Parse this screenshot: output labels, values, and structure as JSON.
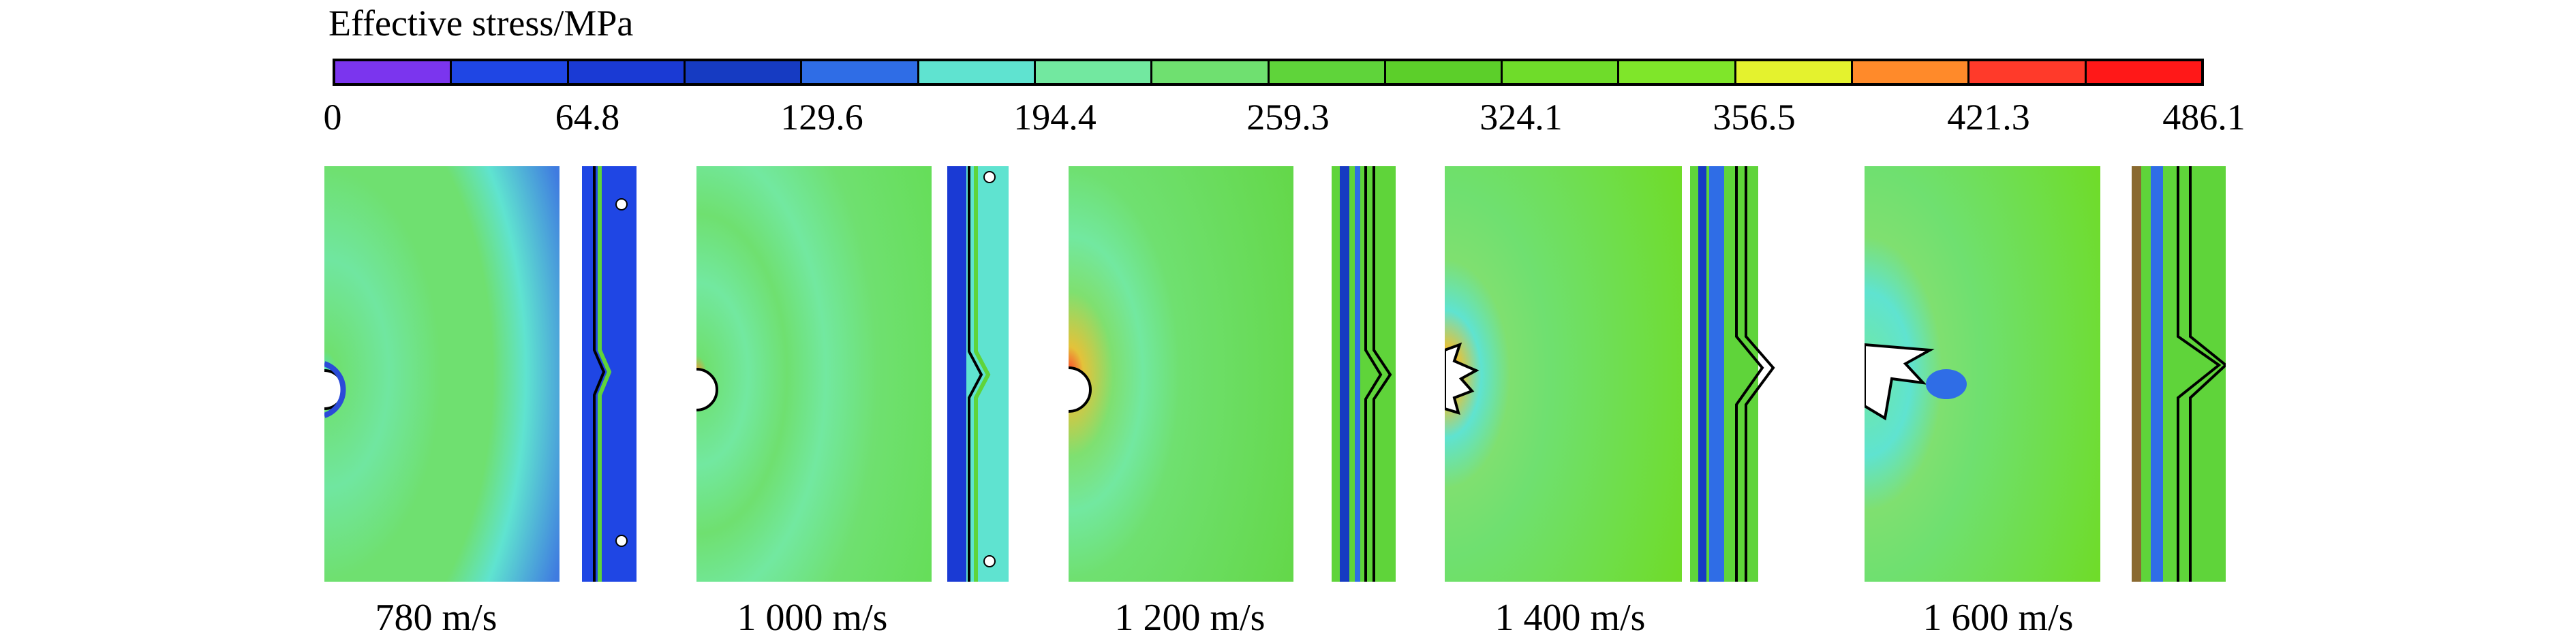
{
  "legend": {
    "title": "Effective stress/MPa",
    "tick_labels": [
      "0",
      "64.8",
      "129.6",
      "194.4",
      "259.3",
      "324.1",
      "356.5",
      "421.3",
      "486.1"
    ],
    "colors": [
      "#7b35ee",
      "#1f46e4",
      "#1a3ad4",
      "#163bc2",
      "#2f6de6",
      "#5fe3d0",
      "#72e8a0",
      "#6fe070",
      "#5fd43a",
      "#5ccf2a",
      "#6fdc2a",
      "#7fe62a",
      "#e4f22e",
      "#ff8a2a",
      "#ff3a2a",
      "#ff1818"
    ]
  },
  "panels": [
    {
      "velocity": "780 m/s"
    },
    {
      "velocity": "1 000 m/s"
    },
    {
      "velocity": "1 200 m/s"
    },
    {
      "velocity": "1 400 m/s"
    },
    {
      "velocity": "1 600 m/s"
    }
  ]
}
